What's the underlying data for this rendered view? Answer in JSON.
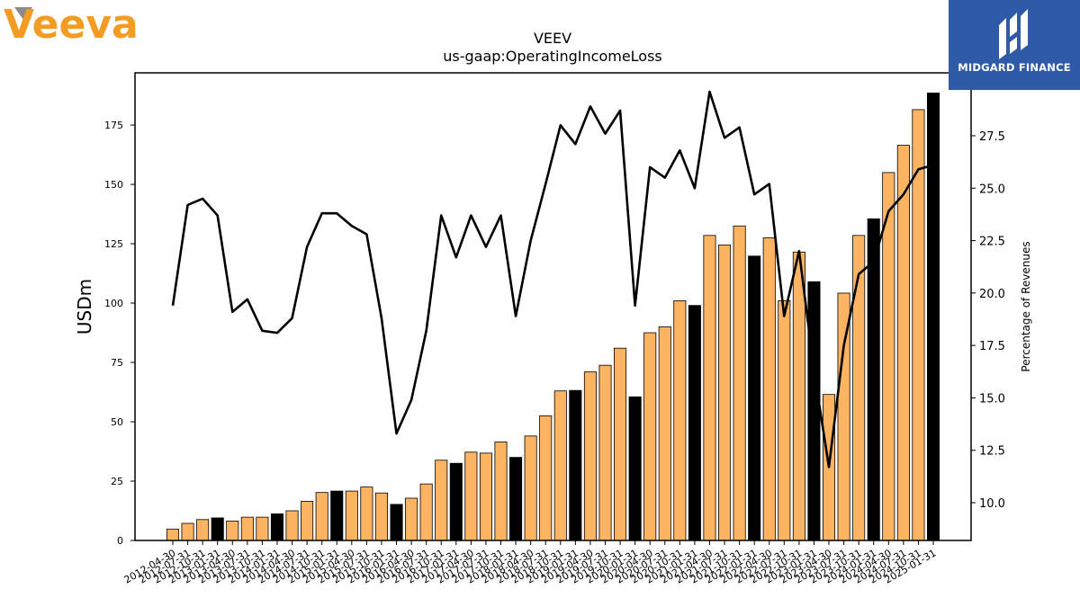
{
  "header": {
    "left_logo_text": "Veeva",
    "right_logo_text": "MIDGARD FINANCE"
  },
  "colors": {
    "bar_normal": "#fdb462",
    "bar_highlight": "#000000",
    "line": "#000000",
    "veeva_orange": "#f39c24",
    "badge_blue": "#2f5aa8"
  },
  "chart_data": {
    "type": "bar",
    "title": "VEEV",
    "subtitle": "us-gaap:OperatingIncomeLoss",
    "ylabel": "USDm",
    "y2label": "Percentage of Revenues",
    "ylim": [
      0,
      197
    ],
    "y2lim": [
      8.2,
      30.5
    ],
    "yticks": [
      0,
      25,
      50,
      75,
      100,
      125,
      150,
      175
    ],
    "y2ticks": [
      10.0,
      12.5,
      15.0,
      17.5,
      20.0,
      22.5,
      25.0,
      27.5
    ],
    "categories": [
      "2012-04-30",
      "2012-07-31",
      "2012-10-31",
      "2013-01-31",
      "2013-04-30",
      "2013-07-31",
      "2013-10-31",
      "2014-01-31",
      "2014-04-30",
      "2014-07-31",
      "2014-10-31",
      "2015-01-31",
      "2015-04-30",
      "2015-07-31",
      "2015-10-31",
      "2016-01-31",
      "2016-04-30",
      "2016-07-31",
      "2016-10-31",
      "2017-01-31",
      "2017-04-30",
      "2017-07-31",
      "2017-10-31",
      "2018-01-31",
      "2018-04-30",
      "2018-07-31",
      "2018-10-31",
      "2019-01-31",
      "2019-04-30",
      "2019-07-31",
      "2019-10-31",
      "2020-01-31",
      "2020-04-30",
      "2020-07-31",
      "2020-10-31",
      "2021-01-31",
      "2021-04-30",
      "2021-07-31",
      "2021-10-31",
      "2022-01-31",
      "2022-04-30",
      "2022-07-31",
      "2022-10-31",
      "2023-01-31",
      "2023-04-30",
      "2023-07-31",
      "2023-10-31",
      "2024-01-31",
      "2024-04-30",
      "2024-07-31",
      "2024-10-31",
      "2025-01-31"
    ],
    "series": [
      {
        "kind": "bar",
        "values": [
          4.8,
          7.2,
          8.8,
          9.5,
          8.2,
          9.8,
          9.8,
          11.2,
          12.5,
          16.5,
          20.2,
          20.8,
          20.8,
          22.5,
          20.0,
          15.2,
          17.8,
          23.8,
          33.8,
          32.5,
          37.2,
          36.8,
          41.5,
          35.0,
          44.0,
          52.5,
          63.0,
          63.2,
          71.0,
          73.8,
          81.0,
          60.5,
          87.5,
          90.0,
          101.0,
          99.0,
          128.5,
          124.5,
          132.5,
          119.8,
          127.5,
          101.0,
          121.5,
          109.0,
          61.5,
          104.2,
          128.5,
          135.5,
          155.0,
          166.5,
          181.5,
          188.5
        ],
        "highlight": [
          false,
          false,
          false,
          true,
          false,
          false,
          false,
          true,
          false,
          false,
          false,
          true,
          false,
          false,
          false,
          true,
          false,
          false,
          false,
          true,
          false,
          false,
          false,
          true,
          false,
          false,
          false,
          true,
          false,
          false,
          false,
          true,
          false,
          false,
          false,
          true,
          false,
          false,
          false,
          true,
          false,
          false,
          false,
          true,
          false,
          false,
          false,
          true,
          false,
          false,
          false,
          true
        ]
      },
      {
        "kind": "line",
        "axis": "right",
        "values": [
          19.4,
          24.2,
          24.5,
          23.7,
          19.1,
          19.7,
          18.2,
          18.1,
          18.8,
          22.2,
          23.8,
          23.8,
          23.2,
          22.8,
          18.8,
          13.3,
          14.9,
          18.2,
          23.7,
          21.7,
          23.7,
          22.2,
          23.7,
          18.9,
          22.5,
          25.2,
          28.0,
          27.1,
          28.9,
          27.6,
          28.7,
          19.4,
          26.0,
          25.5,
          26.8,
          25.0,
          29.6,
          27.4,
          27.9,
          24.7,
          25.2,
          18.9,
          22.0,
          16.3,
          11.7,
          17.5,
          20.9,
          21.5,
          23.9,
          24.7,
          25.9,
          26.1
        ]
      }
    ]
  }
}
